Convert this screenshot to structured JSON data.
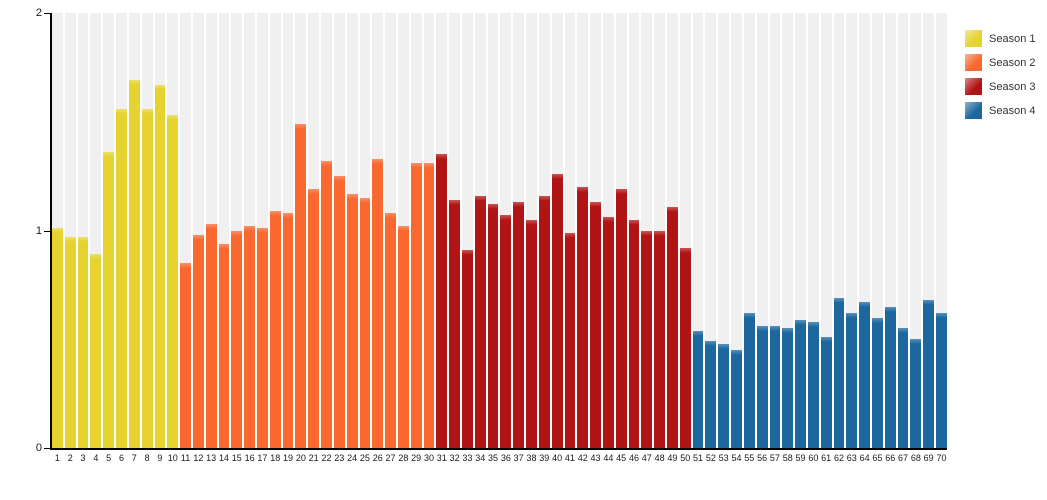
{
  "chart_data": {
    "type": "bar",
    "title": "",
    "xlabel": "",
    "ylabel": "",
    "ylim": [
      0,
      2
    ],
    "y_ticks": [
      2,
      1,
      0
    ],
    "grid": "striped-columns",
    "background_stripe_color": "#f0f0f0",
    "axis_color": "#000000",
    "legend_position": "top-right",
    "series": [
      {
        "name": "Season 1",
        "color": "#e6d32f",
        "episodes": [
          1,
          2,
          3,
          4,
          5,
          6,
          7,
          8,
          9,
          10
        ],
        "values": [
          1.01,
          0.97,
          0.97,
          0.89,
          1.36,
          1.56,
          1.69,
          1.56,
          1.67,
          1.53
        ]
      },
      {
        "name": "Season 2",
        "color": "#f8682f",
        "episodes": [
          11,
          12,
          13,
          14,
          15,
          16,
          17,
          18,
          19,
          20,
          21,
          22,
          23,
          24,
          25,
          26,
          27,
          28,
          29,
          30
        ],
        "values": [
          0.85,
          0.98,
          1.03,
          0.94,
          1.0,
          1.02,
          1.01,
          1.09,
          1.08,
          1.49,
          1.19,
          1.32,
          1.25,
          1.17,
          1.15,
          1.33,
          1.08,
          1.02,
          1.31,
          1.31
        ]
      },
      {
        "name": "Season 3",
        "color": "#b11414",
        "episodes": [
          31,
          32,
          33,
          34,
          35,
          36,
          37,
          38,
          39,
          40,
          41,
          42,
          43,
          44,
          45,
          46,
          47,
          48,
          49,
          50
        ],
        "values": [
          1.35,
          1.14,
          0.91,
          1.16,
          1.12,
          1.07,
          1.13,
          1.05,
          1.16,
          1.26,
          0.99,
          1.2,
          1.13,
          1.06,
          1.19,
          1.05,
          1.0,
          1.0,
          1.11,
          0.92
        ]
      },
      {
        "name": "Season 4",
        "color": "#1b679e",
        "episodes": [
          51,
          52,
          53,
          54,
          55,
          56,
          57,
          58,
          59,
          60,
          61,
          62,
          63,
          64,
          65,
          66,
          67,
          68,
          69,
          70
        ],
        "values": [
          0.54,
          0.49,
          0.48,
          0.45,
          0.62,
          0.56,
          0.56,
          0.55,
          0.59,
          0.58,
          0.51,
          0.69,
          0.62,
          0.67,
          0.6,
          0.65,
          0.55,
          0.5,
          0.68,
          0.62
        ]
      }
    ]
  }
}
